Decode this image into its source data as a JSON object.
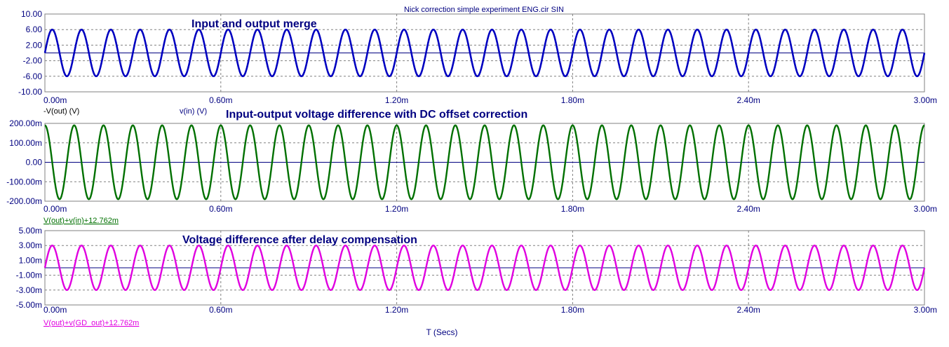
{
  "title": "Nick correction simple experiment ENG.cir SIN",
  "x_axis_label": "T (Secs)",
  "colors": {
    "navy": "#000080",
    "blue": "#0000c0",
    "green": "#007000",
    "magenta": "#e000e0",
    "grid": "#808080"
  },
  "chart_data": [
    {
      "type": "line",
      "annotation": "Input and output merge",
      "x_ticks": [
        "0.00m",
        "0.60m",
        "1.20m",
        "1.80m",
        "2.40m",
        "3.00m"
      ],
      "y_ticks": [
        "10.00",
        "6.00",
        "2.00",
        "-2.00",
        "-6.00",
        "-10.00"
      ],
      "xlim": [
        0,
        3.0
      ],
      "ylim": [
        -10,
        10
      ],
      "grid": true,
      "series": [
        {
          "name": "-V(out) (V)",
          "amplitude": 6,
          "frequency_khz": 10,
          "phase_deg": 0,
          "color": "#0000c0"
        },
        {
          "name": "v(in) (V)",
          "amplitude": 6,
          "frequency_khz": 10,
          "phase_deg": 0,
          "color": "#0000c0"
        }
      ],
      "legend_colors": [
        "#000000",
        "#000080"
      ]
    },
    {
      "type": "line",
      "annotation": "Input-output voltage difference with DC offset correction",
      "x_ticks": [
        "0.00m",
        "0.60m",
        "1.20m",
        "1.80m",
        "2.40m",
        "3.00m"
      ],
      "y_ticks": [
        "200.00m",
        "100.00m",
        "0.00",
        "-100.00m",
        "-200.00m"
      ],
      "xlim": [
        0,
        3.0
      ],
      "ylim": [
        -200,
        200
      ],
      "y_unit": "mV",
      "grid": true,
      "series": [
        {
          "name": "V(out)+v(in)+12.762m",
          "amplitude": 190,
          "frequency_khz": 10,
          "phase_deg": 90,
          "color": "#007000"
        }
      ]
    },
    {
      "type": "line",
      "annotation": "Voltage difference after delay compensation",
      "x_ticks": [
        "0.00m",
        "0.60m",
        "1.20m",
        "1.80m",
        "2.40m",
        "3.00m"
      ],
      "y_ticks": [
        "5.00m",
        "3.00m",
        "1.00m",
        "-1.00m",
        "-3.00m",
        "-5.00m"
      ],
      "xlim": [
        0,
        3.0
      ],
      "ylim": [
        -5,
        5
      ],
      "y_unit": "mV",
      "grid": true,
      "series": [
        {
          "name": "V(out)+v(GD_out)+12.762m",
          "amplitude": 3,
          "frequency_khz": 10,
          "phase_deg": 0,
          "color": "#e000e0"
        }
      ]
    }
  ]
}
